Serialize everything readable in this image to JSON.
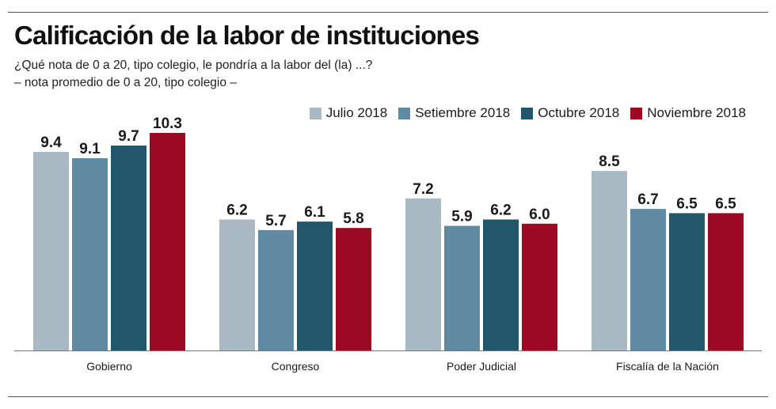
{
  "title": "Calificación de la labor de instituciones",
  "subtitle": "¿Qué nota de 0 a 20, tipo colegio, le pondría a la labor del (la) ...?",
  "note": "– nota promedio de 0 a 20, tipo colegio –",
  "chart_data": {
    "type": "bar",
    "categories": [
      "Gobierno",
      "Congreso",
      "Poder Judicial",
      "Fiscalía de la Nación"
    ],
    "series": [
      {
        "name": "Julio 2018",
        "color": "#a9b9c4",
        "values": [
          9.4,
          6.2,
          7.2,
          8.5
        ]
      },
      {
        "name": "Setiembre 2018",
        "color": "#5f8aa2",
        "values": [
          9.1,
          5.7,
          5.9,
          6.7
        ]
      },
      {
        "name": "Octubre 2018",
        "color": "#22566a",
        "values": [
          9.7,
          6.1,
          6.2,
          6.5
        ]
      },
      {
        "name": "Noviembre 2018",
        "color": "#9b0a22",
        "values": [
          10.3,
          5.8,
          6.0,
          6.5
        ]
      }
    ],
    "ylim": [
      0,
      10.3
    ],
    "xlabel": "",
    "ylabel": "",
    "legend_position": "top-right",
    "grid": false
  }
}
